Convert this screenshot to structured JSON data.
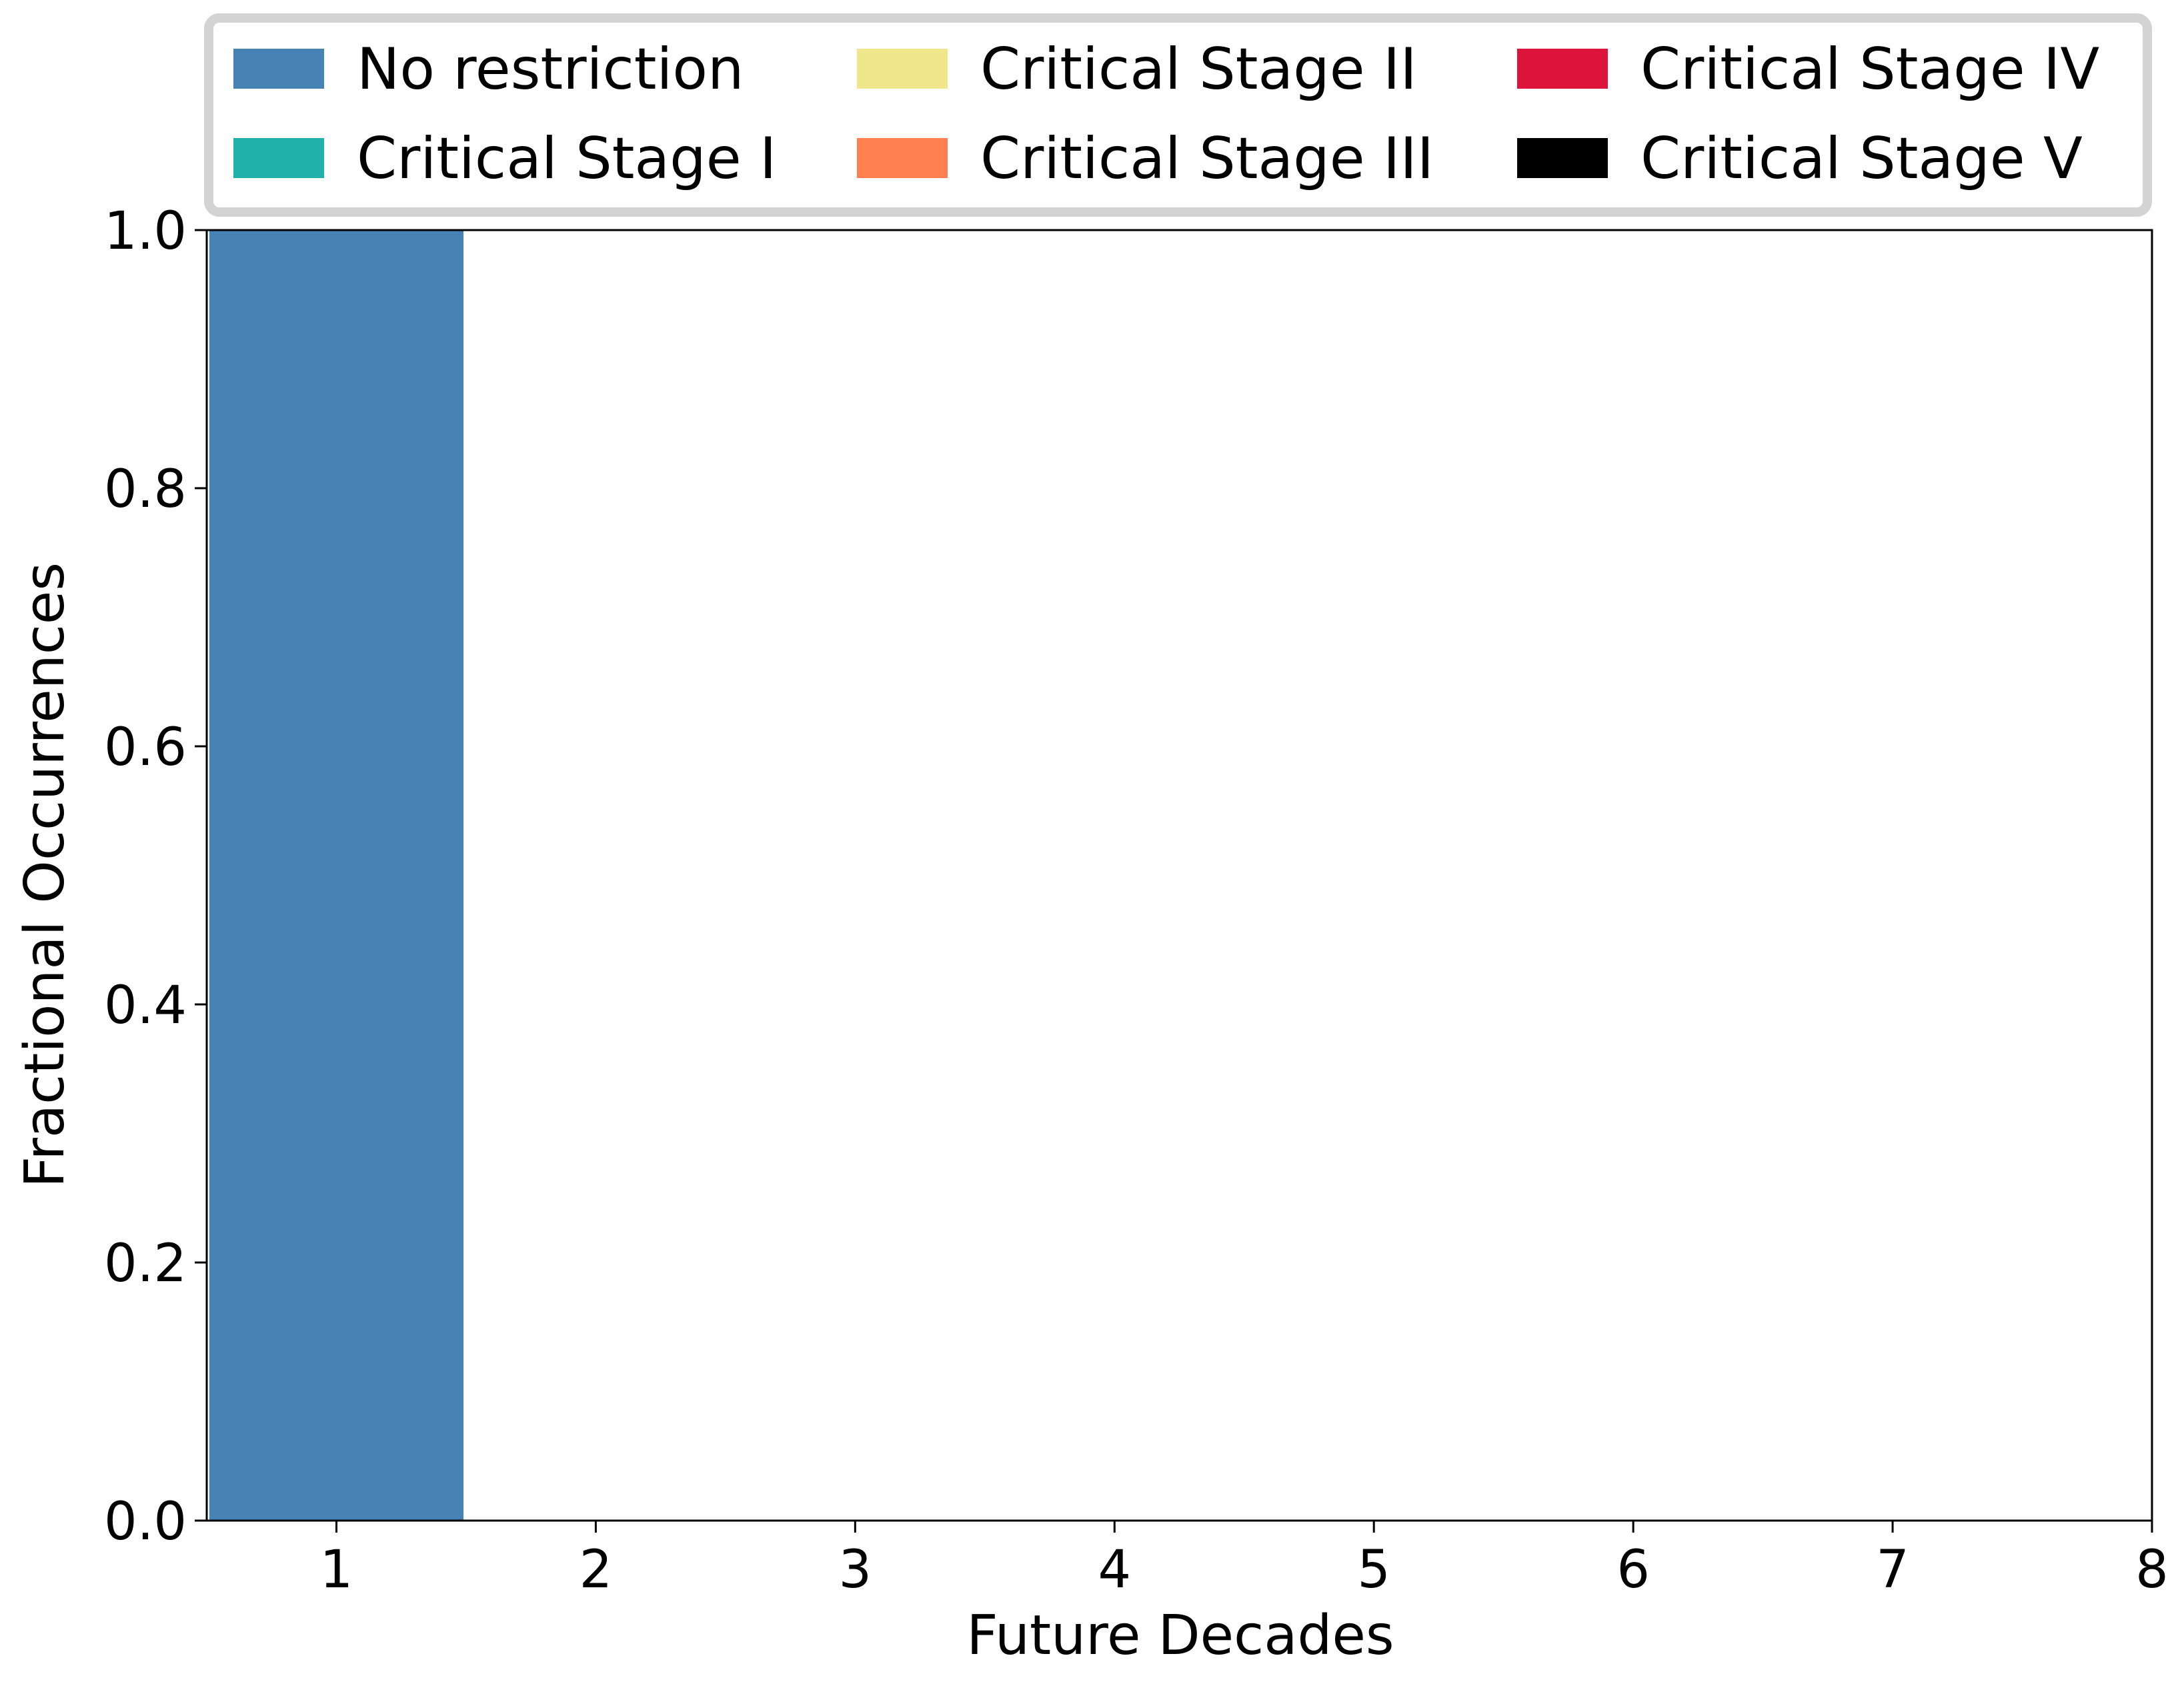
{
  "chart_data": {
    "type": "bar",
    "stacked": true,
    "xlabel": "Future Decades",
    "ylabel": "Fractional Occurrences",
    "xlim": [
      0.5,
      8
    ],
    "ylim": [
      0,
      1
    ],
    "x_ticks": [
      1,
      2,
      3,
      4,
      5,
      6,
      7,
      8
    ],
    "y_ticks": [
      "0.0",
      "0.2",
      "0.4",
      "0.6",
      "0.8",
      "1.0"
    ],
    "categories": [
      1
    ],
    "grid": false,
    "legend_position": "top",
    "series": [
      {
        "name": "No restriction",
        "color": "#4682b4",
        "values": [
          1.0
        ]
      },
      {
        "name": "Critical Stage I",
        "color": "#20b2aa",
        "values": [
          0.0
        ]
      },
      {
        "name": "Critical Stage II",
        "color": "#f0e68c",
        "values": [
          0.0
        ]
      },
      {
        "name": "Critical Stage III",
        "color": "#ff7f50",
        "values": [
          0.0
        ]
      },
      {
        "name": "Critical Stage IV",
        "color": "#dc143c",
        "values": [
          0.0
        ]
      },
      {
        "name": "Critical Stage V",
        "color": "#000000",
        "values": [
          0.0
        ]
      }
    ]
  }
}
